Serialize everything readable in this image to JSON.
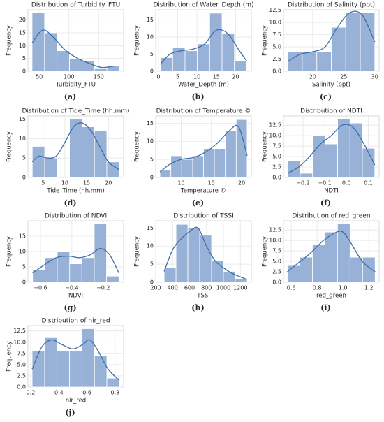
{
  "chart_data": [
    {
      "type": "histogram",
      "title": "Distribution of Turbidity_FTU",
      "xlabel": "Turbidity_FTU",
      "ylabel": "Frequency",
      "caption": "(a)",
      "bins": [
        38,
        59,
        80,
        101,
        122,
        143,
        164,
        185
      ],
      "counts": [
        23,
        15,
        8,
        5,
        4,
        1,
        2
      ],
      "kde": {
        "x": [
          38,
          50,
          60,
          75,
          95,
          115,
          135,
          155,
          175
        ],
        "y": [
          11,
          15,
          16,
          13,
          8,
          5,
          3,
          1.5,
          2
        ]
      },
      "xlim": [
        31,
        192
      ],
      "ylim": [
        0,
        24
      ],
      "xticks": [
        50,
        100,
        150
      ],
      "yticks": [
        0,
        5,
        10,
        15,
        20
      ],
      "color": "#98b1d6",
      "line_color": "#3b6ea8",
      "grid": true
    },
    {
      "type": "histogram",
      "title": "Distribution of Water_Depth  (m)",
      "xlabel": "Water_Depth  (m)",
      "ylabel": "Frequency",
      "caption": "(b)",
      "bins": [
        0.5,
        3.7,
        6.9,
        10.1,
        13.3,
        16.5,
        19.7,
        22.9
      ],
      "counts": [
        4,
        7,
        6,
        8,
        17,
        11,
        3
      ],
      "kde": {
        "x": [
          0.5,
          3,
          6,
          9,
          12,
          15,
          18,
          21,
          22.9
        ],
        "y": [
          2,
          5,
          6,
          6.5,
          8,
          12,
          11,
          6,
          3
        ]
      },
      "xlim": [
        -0.7,
        24.1
      ],
      "ylim": [
        0,
        18
      ],
      "xticks": [
        0,
        5,
        10,
        15,
        20
      ],
      "yticks": [
        0,
        5,
        10,
        15
      ],
      "color": "#98b1d6",
      "line_color": "#3b6ea8",
      "grid": true
    },
    {
      "type": "histogram",
      "title": "Distribution of Salinity (ppt)",
      "xlabel": "Salinity (ppt)",
      "ylabel": "Frequency",
      "caption": "(c)",
      "bins": [
        16,
        18.33,
        20.67,
        23,
        25.33,
        27.67,
        30
      ],
      "counts": [
        4,
        4,
        4,
        9,
        12,
        12
      ],
      "kde": {
        "x": [
          16,
          18,
          20,
          22,
          24,
          26,
          28,
          30
        ],
        "y": [
          2,
          3.5,
          4,
          5,
          9,
          12,
          11.5,
          6
        ]
      },
      "xlim": [
        15.3,
        30.7
      ],
      "ylim": [
        0,
        12.6
      ],
      "xticks": [
        20,
        25,
        30
      ],
      "yticks": [
        {
          "value": 0,
          "label": "0.0"
        },
        2.5,
        {
          "value": 5,
          "label": "5.0"
        },
        7.5,
        {
          "value": 10,
          "label": "10.0"
        },
        12.5
      ],
      "color": "#98b1d6",
      "line_color": "#3b6ea8",
      "grid": true
    },
    {
      "type": "histogram",
      "title": "Distribution of Tide_Time (hh.mm)",
      "xlabel": "Tide_Time (hh.mm)",
      "ylabel": "Frequency",
      "caption": "(d)",
      "bins": [
        2.5,
        5.36,
        8.21,
        11.07,
        13.93,
        16.79,
        19.64,
        22.5
      ],
      "counts": [
        8,
        5,
        0,
        15,
        13,
        12,
        4
      ],
      "kde": {
        "x": [
          2.5,
          4,
          6,
          8,
          10,
          12,
          14,
          16,
          18,
          20,
          22.5
        ],
        "y": [
          4,
          5.5,
          5,
          5.5,
          9,
          13,
          14,
          12,
          8,
          4,
          2
        ]
      },
      "xlim": [
        1.5,
        23.5
      ],
      "ylim": [
        0,
        15.8
      ],
      "xticks": [
        5,
        10,
        15,
        20
      ],
      "yticks": [
        0,
        5,
        10,
        15
      ],
      "color": "#98b1d6",
      "line_color": "#3b6ea8",
      "grid": true
    },
    {
      "type": "histogram",
      "title": "Distribution of Temperature ©",
      "xlabel": "Temperature ©",
      "ylabel": "Frequency",
      "caption": "(e)",
      "bins": [
        6.5,
        8.3,
        10.1,
        11.9,
        13.7,
        15.5,
        17.3,
        19.1,
        20.9
      ],
      "counts": [
        2,
        6,
        5,
        6,
        8,
        8,
        13,
        16
      ],
      "kde": {
        "x": [
          6.5,
          8,
          10,
          12,
          14,
          16,
          18,
          19.5,
          20.9
        ],
        "y": [
          1.5,
          3.5,
          5,
          5.5,
          7,
          9.5,
          13,
          14,
          6
        ]
      },
      "xlim": [
        5.8,
        21.6
      ],
      "ylim": [
        0,
        17
      ],
      "xticks": [
        10,
        15,
        20
      ],
      "yticks": [
        0,
        5,
        10,
        15
      ],
      "color": "#98b1d6",
      "line_color": "#3b6ea8",
      "grid": true
    },
    {
      "type": "histogram",
      "title": "Distribution of NDTI",
      "xlabel": "NDTI",
      "ylabel": "Frequency",
      "caption": "(f)",
      "bins": [
        -0.27,
        -0.213,
        -0.156,
        -0.099,
        -0.041,
        0.016,
        0.073,
        0.13
      ],
      "counts": [
        4,
        1,
        10,
        8,
        14,
        13,
        7
      ],
      "kde": {
        "x": [
          -0.27,
          -0.22,
          -0.17,
          -0.12,
          -0.07,
          -0.02,
          0.03,
          0.08,
          0.13
        ],
        "y": [
          1,
          2.5,
          5,
          8,
          10,
          12.5,
          12,
          8,
          3
        ]
      },
      "xlim": [
        -0.29,
        0.15
      ],
      "ylim": [
        0,
        14.7
      ],
      "xticks": [
        {
          "value": -0.2,
          "label": "−0.2"
        },
        {
          "value": -0.1,
          "label": "−0.1"
        },
        {
          "value": 0,
          "label": "0.0"
        },
        0.1
      ],
      "yticks": [
        {
          "value": 0,
          "label": "0.0"
        },
        2.5,
        {
          "value": 5,
          "label": "5.0"
        },
        7.5,
        {
          "value": 10,
          "label": "10.0"
        },
        12.5
      ],
      "color": "#98b1d6",
      "line_color": "#3b6ea8",
      "grid": true
    },
    {
      "type": "histogram",
      "title": "Distribution of NDVI",
      "xlabel": "NDVI",
      "ylabel": "Frequency",
      "caption": "(g)",
      "bins": [
        -0.65,
        -0.571,
        -0.493,
        -0.414,
        -0.336,
        -0.257,
        -0.179,
        -0.1
      ],
      "counts": [
        4,
        8,
        10,
        6,
        8,
        19,
        2
      ],
      "kde": {
        "x": [
          -0.65,
          -0.58,
          -0.5,
          -0.42,
          -0.35,
          -0.28,
          -0.22,
          -0.16,
          -0.1
        ],
        "y": [
          3,
          5.5,
          8,
          8.5,
          8,
          9,
          11,
          9,
          3
        ]
      },
      "xlim": [
        -0.68,
        -0.07
      ],
      "ylim": [
        0,
        20
      ],
      "xticks": [
        {
          "value": -0.6,
          "label": "−0.6"
        },
        {
          "value": -0.4,
          "label": "−0.4"
        },
        {
          "value": -0.2,
          "label": "−0.2"
        }
      ],
      "yticks": [
        0,
        5,
        10,
        15
      ],
      "color": "#98b1d6",
      "line_color": "#3b6ea8",
      "grid": true
    },
    {
      "type": "histogram",
      "title": "Distribution of TSSI",
      "xlabel": "TSSI",
      "ylabel": "Frequency",
      "caption": "(h)",
      "bins": [
        300,
        440,
        580,
        720,
        860,
        1000,
        1140,
        1280
      ],
      "counts": [
        4,
        16,
        15,
        13,
        6,
        3,
        1
      ],
      "kde": {
        "x": [
          300,
          400,
          500,
          600,
          700,
          800,
          900,
          1000,
          1100,
          1200,
          1280
        ],
        "y": [
          3,
          9,
          12,
          14,
          15,
          10,
          6,
          4,
          2.5,
          1.5,
          0.8
        ]
      },
      "xlim": [
        200,
        1330
      ],
      "ylim": [
        0,
        17
      ],
      "xticks": [
        200,
        400,
        600,
        800,
        1000,
        1200
      ],
      "yticks": [
        0,
        5,
        10,
        15
      ],
      "color": "#98b1d6",
      "line_color": "#3b6ea8",
      "grid": true
    },
    {
      "type": "histogram",
      "title": "Distribution of red_green",
      "xlabel": "red_green",
      "ylabel": "Frequency",
      "caption": "(i)",
      "bins": [
        0.57,
        0.667,
        0.764,
        0.861,
        0.958,
        1.055,
        1.152,
        1.249
      ],
      "counts": [
        4,
        6,
        9,
        12,
        14,
        6,
        6
      ],
      "kde": {
        "x": [
          0.57,
          0.65,
          0.75,
          0.85,
          0.95,
          1.0,
          1.05,
          1.15,
          1.249
        ],
        "y": [
          2.5,
          4.5,
          7,
          10,
          12,
          12,
          10,
          5,
          2.5
        ]
      },
      "xlim": [
        0.54,
        1.28
      ],
      "ylim": [
        0,
        14.7
      ],
      "xticks": [
        0.6,
        0.8,
        {
          "value": 1,
          "label": "1.0"
        },
        1.2
      ],
      "yticks": [
        {
          "value": 0,
          "label": "0.0"
        },
        2.5,
        {
          "value": 5,
          "label": "5.0"
        },
        7.5,
        {
          "value": 10,
          "label": "10.0"
        },
        12.5
      ],
      "color": "#98b1d6",
      "line_color": "#3b6ea8",
      "grid": true
    },
    {
      "type": "histogram",
      "title": "Distribution of nir_red",
      "xlabel": "nir_red",
      "ylabel": "Frequency",
      "caption": "(j)",
      "bins": [
        0.21,
        0.299,
        0.387,
        0.476,
        0.564,
        0.653,
        0.741,
        0.83
      ],
      "counts": [
        8,
        11,
        8,
        8,
        13,
        7,
        2
      ],
      "kde": {
        "x": [
          0.21,
          0.28,
          0.35,
          0.42,
          0.5,
          0.57,
          0.62,
          0.68,
          0.75,
          0.83
        ],
        "y": [
          4,
          9,
          10.5,
          9.5,
          8.5,
          9.5,
          10.5,
          8,
          4,
          1.5
        ]
      },
      "xlim": [
        0.18,
        0.86
      ],
      "ylim": [
        0,
        13.7
      ],
      "xticks": [
        0.2,
        0.4,
        0.6,
        0.8
      ],
      "yticks": [
        {
          "value": 0,
          "label": "0.0"
        },
        2.5,
        {
          "value": 5,
          "label": "5.0"
        },
        7.5,
        {
          "value": 10,
          "label": "10.0"
        },
        12.5
      ],
      "color": "#98b1d6",
      "line_color": "#3b6ea8",
      "grid": true
    }
  ]
}
